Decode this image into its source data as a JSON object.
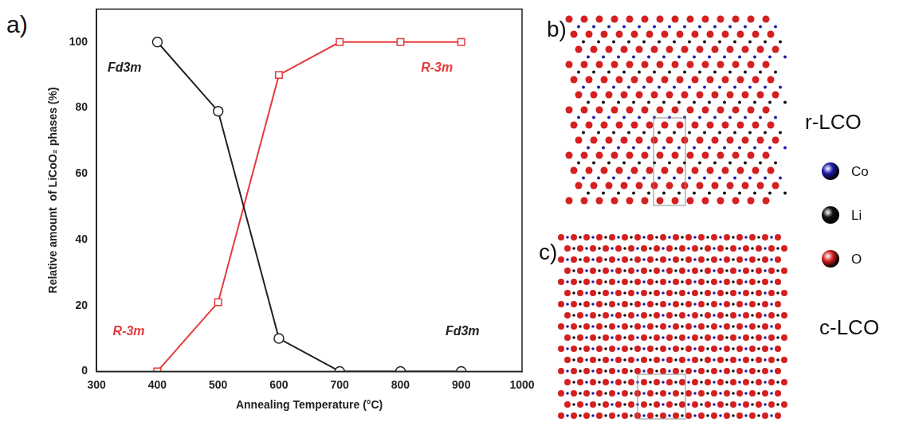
{
  "chart_data": {
    "type": "line",
    "panel_label": "a)",
    "x_label": "Annealing Temperature (°C)",
    "y_label": "Relative amount  of LiCoO₂ phases (%)",
    "x": [
      400,
      500,
      600,
      700,
      800,
      900
    ],
    "series": [
      {
        "name": "Fd3m",
        "color": "#222222",
        "marker": "circle",
        "values": [
          100,
          79,
          10,
          0,
          0,
          0
        ]
      },
      {
        "name": "R-3m",
        "color": "#e8393b",
        "marker": "square",
        "values": [
          0,
          21,
          90,
          100,
          100,
          100
        ]
      }
    ],
    "xlim": [
      300,
      1000
    ],
    "xticks": [
      300,
      400,
      500,
      600,
      700,
      800,
      900,
      1000
    ],
    "ylim": [
      0,
      110
    ],
    "yticks": [
      0,
      20,
      40,
      60,
      80,
      100
    ],
    "grid": false,
    "annotations": [
      {
        "text": "Fd3m",
        "x": 346,
        "y": 92,
        "color": "#222222"
      },
      {
        "text": "R-3m",
        "x": 860,
        "y": 92,
        "color": "#e8393b"
      },
      {
        "text": "R-3m",
        "x": 353,
        "y": 12,
        "color": "#e8393b"
      },
      {
        "text": "Fd3m",
        "x": 902,
        "y": 12,
        "color": "#222222"
      }
    ]
  },
  "structures": {
    "panels": [
      {
        "label": "b)",
        "name": "r-LCO"
      },
      {
        "label": "c)",
        "name": "c-LCO"
      }
    ],
    "atoms": [
      {
        "name": "Co",
        "color": "#1c1ca8"
      },
      {
        "name": "Li",
        "color": "#111111"
      },
      {
        "name": "O",
        "color": "#d42020"
      }
    ]
  }
}
